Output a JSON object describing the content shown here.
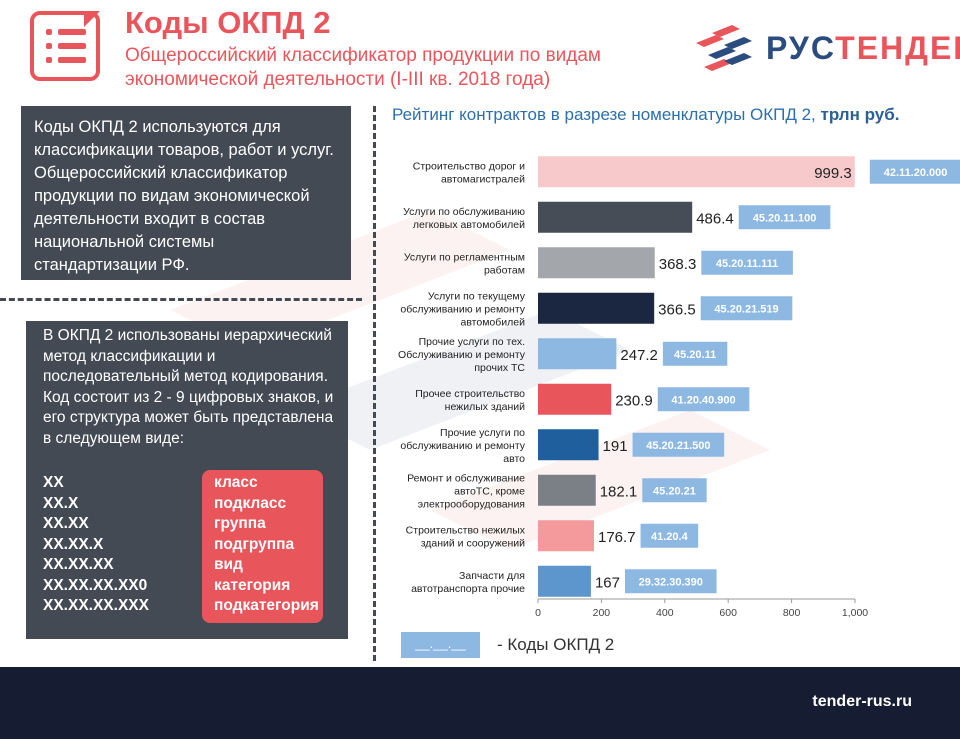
{
  "header": {
    "title": "Коды ОКПД 2",
    "subtitle": "Общероссийский классификатор продукции по видам экономической деятельности (I-III кв. 2018 года)"
  },
  "logo": {
    "text_left": "РУС",
    "text_right": "ТЕНДЕР",
    "icon": "rustender-logo-icon"
  },
  "panel1": {
    "text": "Коды ОКПД 2 используются для классификации товаров, работ и услуг. Общероссийский классификатор продукции по видам экономической деятельности входит в состав национальной системы стандартизации РФ."
  },
  "panel2": {
    "text": "В ОКПД 2 использованы иерархический метод классификации и последовательный метод кодирования. Код состоит из 2 - 9 цифровых знаков, и его структура может быть представлена в следующем виде:",
    "codes": [
      "ХХ",
      "ХХ.Х",
      "ХХ.ХХ",
      "ХХ.ХХ.Х",
      "ХХ.ХХ.ХХ",
      "ХХ.ХХ.ХХ.ХХ0",
      "ХХ.ХХ.ХХ.ХХХ"
    ],
    "levels": [
      "класс",
      "подкласс",
      "группа",
      "подгруппа",
      "вид",
      "категория",
      "подкатегория"
    ]
  },
  "chart_data": {
    "type": "bar",
    "orientation": "horizontal",
    "title": "Рейтинг контрактов в разрезе номенклатуры ОКПД 2,",
    "title_units": "трлн руб.",
    "categories": [
      "Строительство дорог и автомагистралей",
      "Услуги по обслуживанию легковых автомобилей",
      "Услуги по регламентным работам",
      "Услуги по текущему обслуживанию и ремонту автомобилей",
      "Прочие услуги по тех. Обслуживанию и ремонту прочих ТС",
      "Прочее строительство нежилых зданий",
      "Прочие услуги по обслуживанию и ремонту авто",
      "Ремонт и обслуживание автоТС, кроме электрооборудования",
      "Строительство нежилых зданий и сооружений",
      "Запчасти для автотранспорта прочие"
    ],
    "category_lines": [
      [
        "Строительство дорог и",
        "автомагистралей"
      ],
      [
        "Услуги по обслуживанию",
        "легковых автомобилей"
      ],
      [
        "Услуги по регламентным",
        "работам"
      ],
      [
        "Услуги по текущему",
        "обслуживанию и ремонту",
        "автомобилей"
      ],
      [
        "Прочие услуги по тех.",
        "Обслуживанию и ремонту",
        "прочих ТС"
      ],
      [
        "Прочее строительство",
        "нежилых зданий"
      ],
      [
        "Прочие услуги по",
        "обслуживанию и ремонту",
        "авто"
      ],
      [
        "Ремонт и обслуживание",
        "автоТС, кроме",
        "электрооборудования"
      ],
      [
        "Строительство нежилых",
        "зданий и сооружений"
      ],
      [
        "Запчасти для",
        "автотранспорта прочие"
      ]
    ],
    "values": [
      999.3,
      486.4,
      368.3,
      366.5,
      247.2,
      230.9,
      191,
      182.1,
      176.7,
      167
    ],
    "value_labels": [
      "999.3",
      "486.4",
      "368.3",
      "366.5",
      "247.2",
      "230.9",
      "191",
      "182.1",
      "176.7",
      "167"
    ],
    "codes": [
      "42.11.20.000",
      "45.20.11.100",
      "45.20.11.111",
      "45.20.21.519",
      "45.20.11",
      "41.20.40.900",
      "45.20.21.500",
      "45.20.21",
      "41.20.4",
      "29.32.30.390"
    ],
    "colors": [
      "#f8c9cb",
      "#474d57",
      "#a3a6ab",
      "#1b2640",
      "#8db8e2",
      "#e8565c",
      "#1f5f9e",
      "#7b7f86",
      "#f4999c",
      "#5c96cc"
    ],
    "xlim": [
      0,
      1000
    ],
    "xticks": [
      "0",
      "200",
      "400",
      "600",
      "800",
      "1,000"
    ],
    "xtick_values": [
      0,
      200,
      400,
      600,
      800,
      1000
    ],
    "legend": {
      "swatch_text": "__.__.__",
      "label": "-  Коды ОКПД 2"
    }
  },
  "footer": {
    "site": "tender-rus.ru"
  }
}
